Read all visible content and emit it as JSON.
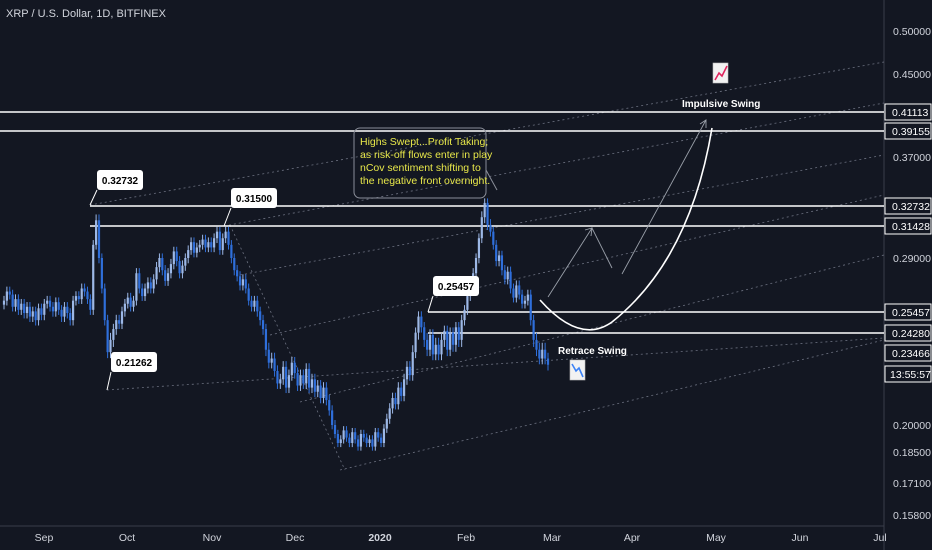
{
  "header": {
    "title": "XRP / U.S. Dollar, 1D, BITFINEX"
  },
  "colors": {
    "background": "#131722",
    "candle": "#2f6fdb",
    "candle_alt": "#9db8e6",
    "axis_text": "#d1d4dc",
    "line": "#ffffff",
    "note_text": "#e8e84a"
  },
  "chart_data": {
    "type": "candlestick",
    "title": "XRP / U.S. Dollar, 1D, BITFINEX",
    "x_ticks": [
      "Sep",
      "Oct",
      "Nov",
      "Dec",
      "2020",
      "Feb",
      "Mar",
      "Apr",
      "May",
      "Jun",
      "Jul"
    ],
    "y_ticks": [
      "0.50000",
      "0.45000",
      "0.37000",
      "0.29000",
      "0.20000",
      "0.18500",
      "0.17100",
      "0.15800"
    ],
    "price_labels": [
      "0.41113",
      "0.39155",
      "0.32732",
      "0.31428",
      "0.25457",
      "0.24280",
      "0.23466"
    ],
    "countdown": "13:55:57",
    "horizontal_levels": [
      0.41113,
      0.39155,
      0.32732,
      0.31428,
      0.25457,
      0.2428
    ],
    "callouts": [
      "0.32732",
      "0.31500",
      "0.25457",
      "0.21262"
    ],
    "annotations": {
      "note": [
        "Highs Swept...Profit Taking;",
        "as risk-off flows enter in play",
        "nCov sentiment shifting to",
        "the negative front overnight."
      ],
      "impulsive": "Impulsive Swing",
      "retrace": "Retrace Swing"
    },
    "closes": [
      0.262,
      0.268,
      0.266,
      0.258,
      0.263,
      0.256,
      0.26,
      0.254,
      0.258,
      0.252,
      0.255,
      0.25,
      0.257,
      0.253,
      0.26,
      0.262,
      0.258,
      0.255,
      0.261,
      0.256,
      0.252,
      0.258,
      0.254,
      0.25,
      0.262,
      0.265,
      0.263,
      0.27,
      0.268,
      0.263,
      0.256,
      0.3,
      0.318,
      0.29,
      0.27,
      0.25,
      0.235,
      0.24,
      0.245,
      0.25,
      0.248,
      0.255,
      0.26,
      0.264,
      0.258,
      0.262,
      0.28,
      0.27,
      0.265,
      0.27,
      0.274,
      0.27,
      0.276,
      0.284,
      0.29,
      0.282,
      0.275,
      0.28,
      0.286,
      0.295,
      0.288,
      0.28,
      0.285,
      0.29,
      0.296,
      0.302,
      0.294,
      0.298,
      0.3,
      0.304,
      0.298,
      0.302,
      0.298,
      0.305,
      0.31,
      0.296,
      0.305,
      0.31,
      0.3,
      0.29,
      0.282,
      0.278,
      0.272,
      0.276,
      0.27,
      0.262,
      0.258,
      0.262,
      0.255,
      0.25,
      0.245,
      0.236,
      0.23,
      0.232,
      0.226,
      0.22,
      0.222,
      0.228,
      0.218,
      0.224,
      0.23,
      0.225,
      0.219,
      0.224,
      0.22,
      0.227,
      0.218,
      0.222,
      0.216,
      0.219,
      0.213,
      0.218,
      0.212,
      0.207,
      0.2,
      0.195,
      0.19,
      0.192,
      0.197,
      0.193,
      0.19,
      0.196,
      0.192,
      0.188,
      0.195,
      0.193,
      0.19,
      0.192,
      0.188,
      0.196,
      0.193,
      0.19,
      0.198,
      0.203,
      0.208,
      0.213,
      0.21,
      0.218,
      0.214,
      0.222,
      0.228,
      0.224,
      0.235,
      0.243,
      0.252,
      0.246,
      0.24,
      0.236,
      0.242,
      0.234,
      0.238,
      0.234,
      0.24,
      0.244,
      0.236,
      0.243,
      0.238,
      0.246,
      0.24,
      0.25,
      0.256,
      0.265,
      0.272,
      0.28,
      0.29,
      0.305,
      0.32,
      0.33,
      0.315,
      0.31,
      0.3,
      0.288,
      0.292,
      0.282,
      0.276,
      0.281,
      0.27,
      0.264,
      0.272,
      0.266,
      0.26,
      0.262,
      0.266,
      0.25,
      0.24,
      0.236,
      0.232,
      0.236,
      0.232,
      0.229
    ]
  }
}
